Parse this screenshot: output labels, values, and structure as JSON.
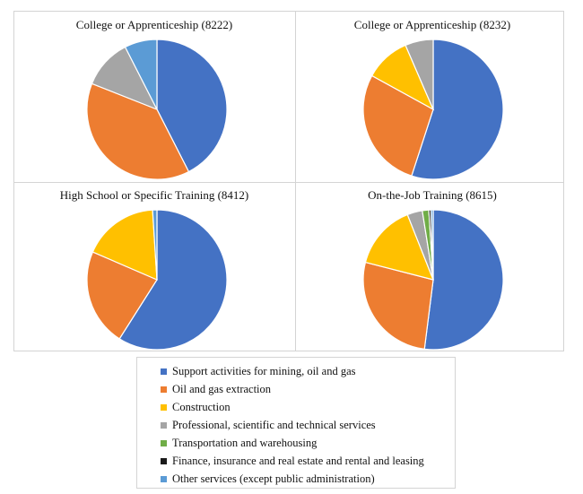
{
  "colors": {
    "Support activities for mining, oil and gas": "#4472C4",
    "Oil and gas extraction": "#ED7D31",
    "Construction": "#FFC000",
    "Professional, scientific and technical services": "#A5A5A5",
    "Transportation and warehousing": "#70AD47",
    "Finance, insurance and real estate and rental and leasing": "#1a1a1a",
    "Other services (except public administration)": "#5B9BD5"
  },
  "chart_data": [
    {
      "type": "pie",
      "title": "College or Apprenticeship (8222)",
      "legend_position": "bottom",
      "labels": [
        "Support activities for mining, oil and gas",
        "Oil and gas extraction",
        "Construction",
        "Professional, scientific and technical services",
        "Transportation and warehousing",
        "Finance, insurance and real estate and rental and leasing",
        "Other services (except public administration)"
      ],
      "values": [
        42.5,
        38.5,
        0,
        11.5,
        0,
        0,
        7.5
      ]
    },
    {
      "type": "pie",
      "title": "College or Apprenticeship (8232)",
      "legend_position": "bottom",
      "labels": [
        "Support activities for mining, oil and gas",
        "Oil and gas extraction",
        "Construction",
        "Professional, scientific and technical services",
        "Transportation and warehousing",
        "Finance, insurance and real estate and rental and leasing",
        "Other services (except public administration)"
      ],
      "values": [
        55,
        28,
        10.5,
        6.5,
        0,
        0,
        0
      ]
    },
    {
      "type": "pie",
      "title": "High School or Specific Training (8412)",
      "legend_position": "bottom",
      "labels": [
        "Support activities for mining, oil and gas",
        "Oil and gas extraction",
        "Construction",
        "Professional, scientific and technical services",
        "Transportation and warehousing",
        "Finance, insurance and real estate and rental and leasing",
        "Other services (except public administration)"
      ],
      "values": [
        59,
        22.5,
        17.5,
        0,
        0,
        0,
        1
      ]
    },
    {
      "type": "pie",
      "title": "On-the-Job Training (8615)",
      "legend_position": "bottom",
      "labels": [
        "Support activities for mining, oil and gas",
        "Oil and gas extraction",
        "Construction",
        "Professional, scientific and technical services",
        "Transportation and warehousing",
        "Finance, insurance and real estate and rental and leasing",
        "Other services (except public administration)"
      ],
      "values": [
        52,
        27,
        15,
        3.5,
        1.5,
        0.5,
        0.5
      ]
    }
  ],
  "legend": {
    "items": [
      "Support activities for mining, oil and gas",
      "Oil and gas extraction",
      "Construction",
      "Professional, scientific and technical services",
      "Transportation and warehousing",
      "Finance, insurance and real estate and rental and leasing",
      "Other services (except public administration)"
    ]
  }
}
